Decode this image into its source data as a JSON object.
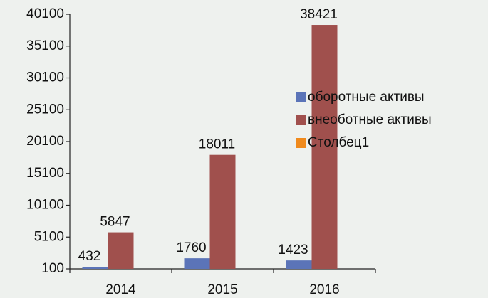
{
  "chart_data": {
    "type": "bar",
    "categories": [
      "2014",
      "2015",
      "2016"
    ],
    "series": [
      {
        "name": "оборотные активы",
        "color": "#5b74b8",
        "values": [
          432,
          1760,
          1423
        ]
      },
      {
        "name": "внеоботные активы",
        "color": "#a0504d",
        "values": [
          5847,
          18011,
          38421
        ]
      },
      {
        "name": "Столбец1",
        "color": "#f08a1c",
        "values": [
          null,
          null,
          null
        ]
      }
    ],
    "ylim": [
      100,
      40100
    ],
    "yticks": [
      100,
      5100,
      10100,
      15100,
      20100,
      25100,
      30100,
      35100,
      40100
    ],
    "legend": "right",
    "grid": false
  }
}
